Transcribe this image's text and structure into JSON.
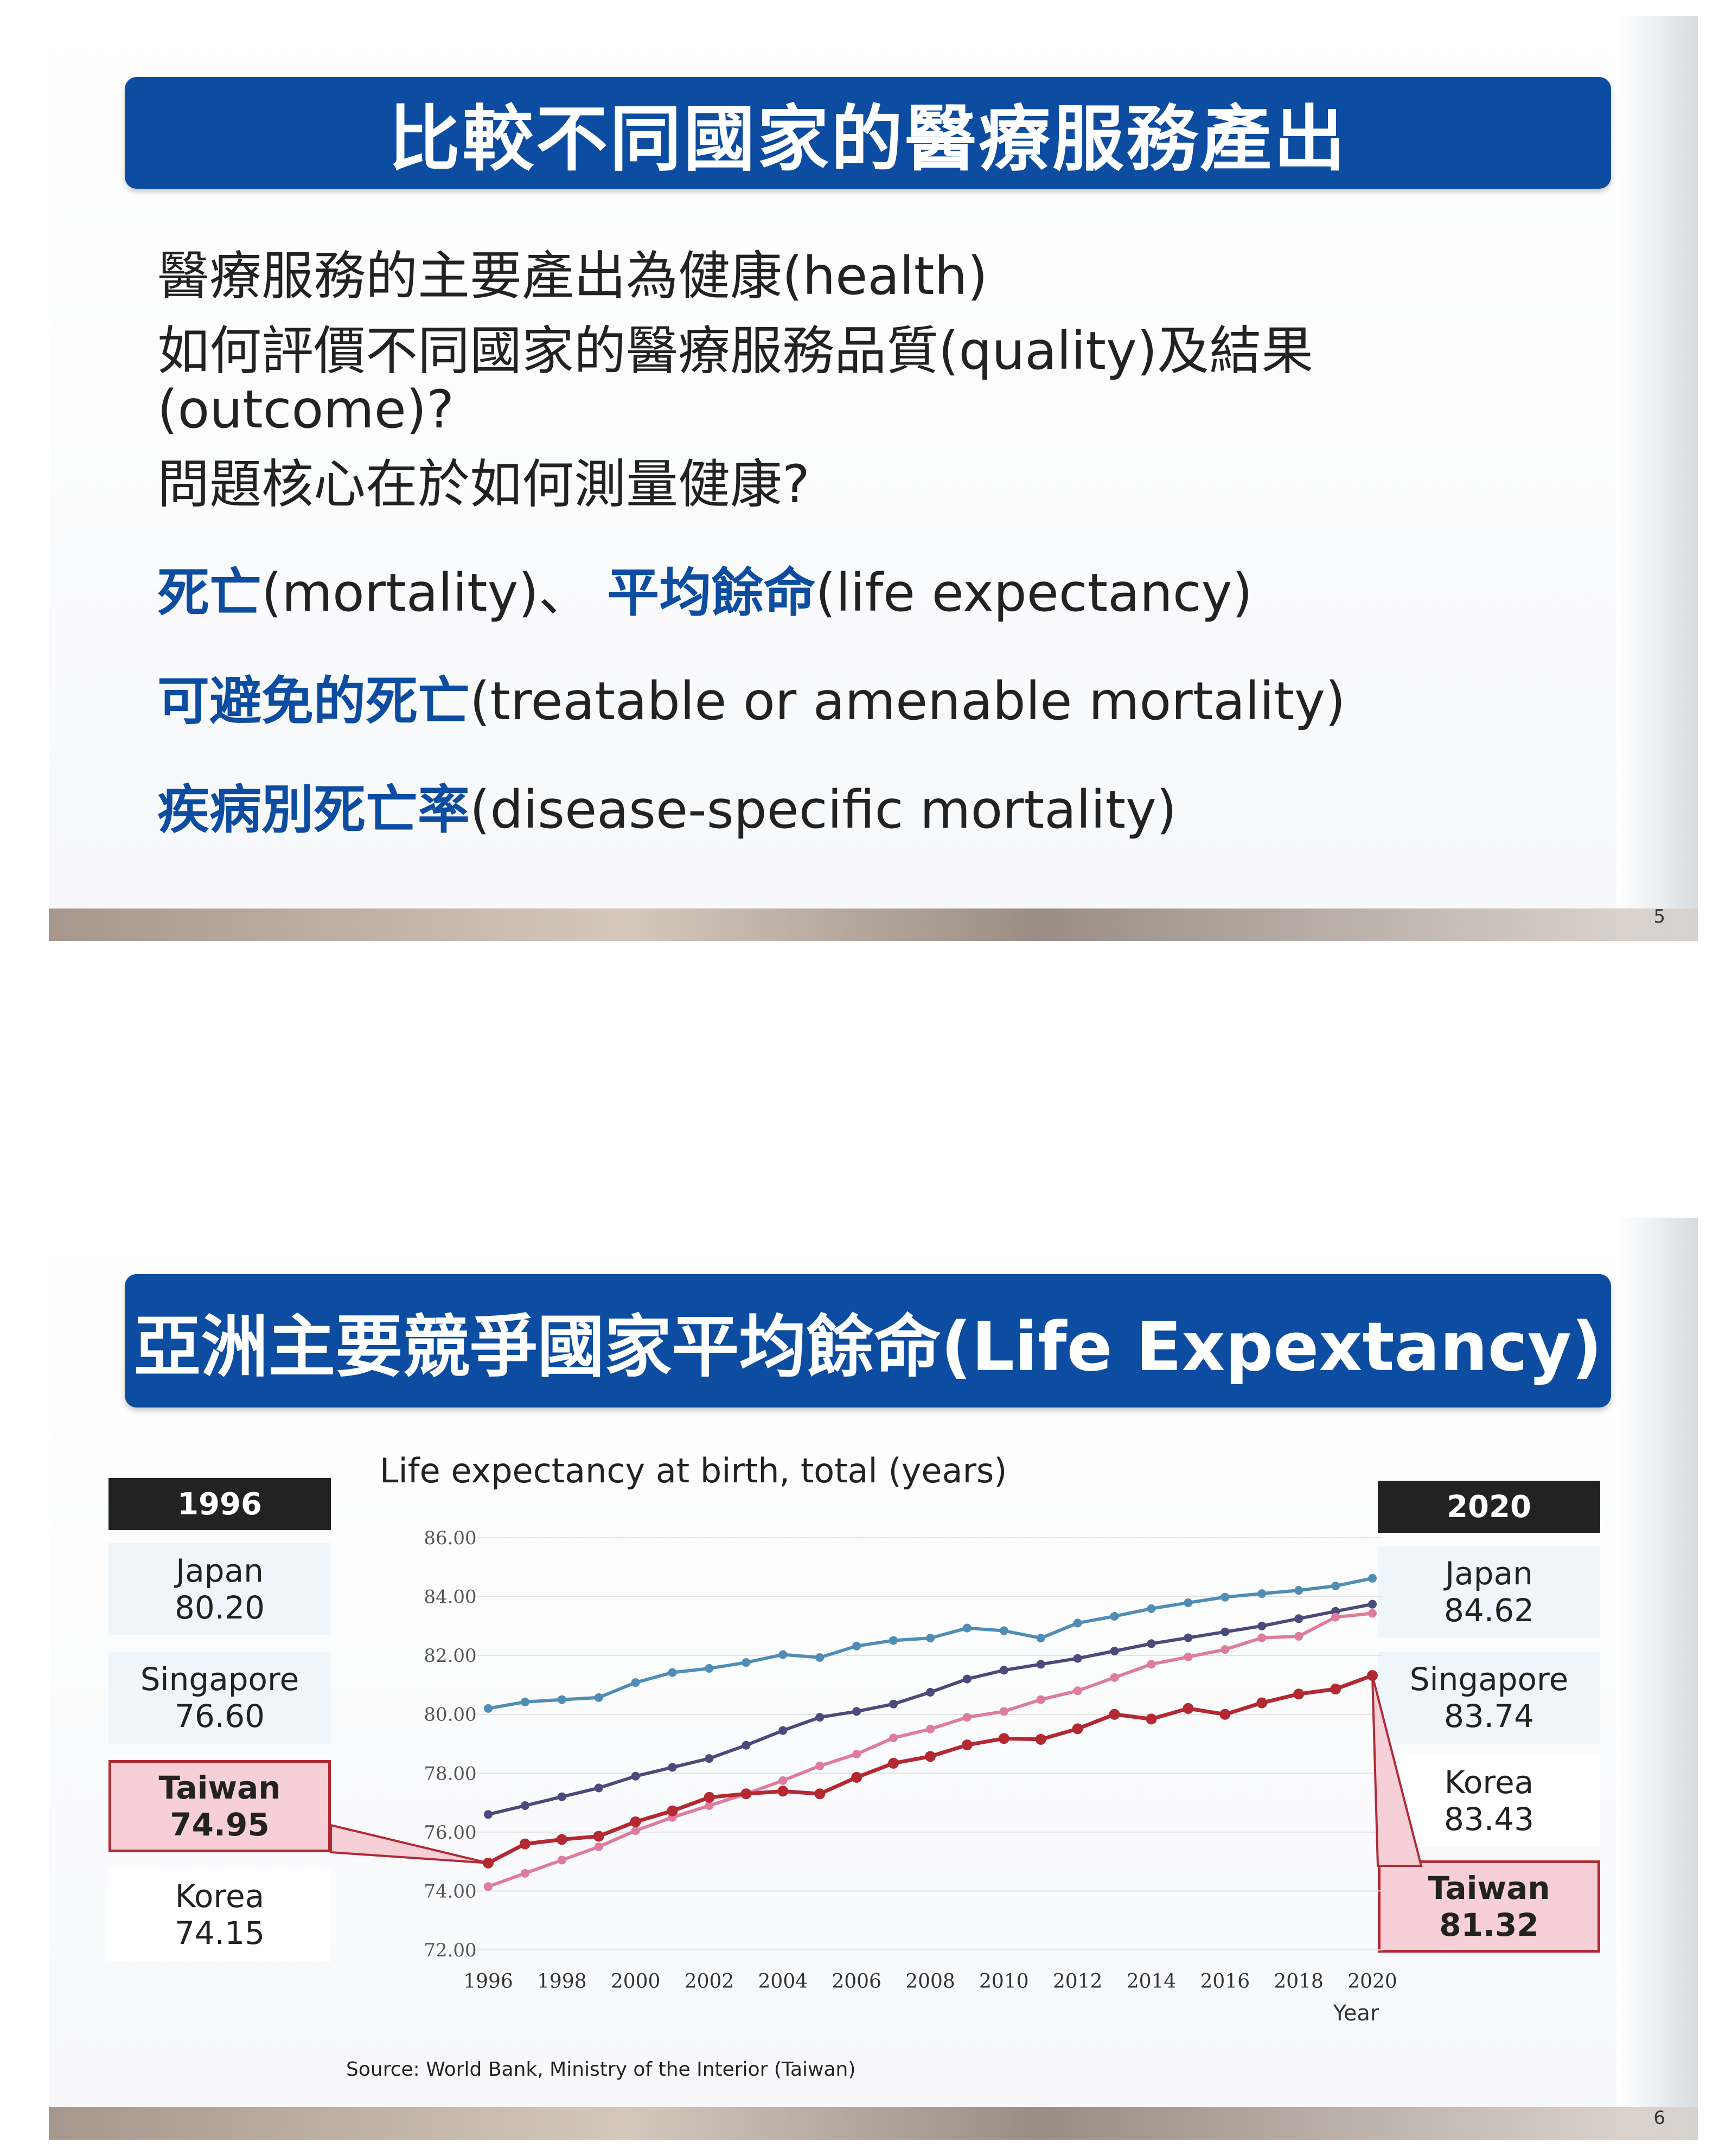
{
  "slide5": {
    "title": "比較不同國家的醫療服務產出",
    "lines": [
      "醫療服務的主要產出為健康(health)",
      "如何評價不同國家的醫療服務品質(quality)及結果",
      "(outcome)?",
      "問題核心在於如何測量健康?"
    ],
    "terms": [
      {
        "t1": "死亡",
        "r1": "(mortality)、 ",
        "t2": "平均餘命",
        "r2": "(life expectancy)"
      },
      {
        "t1": "可避免的死亡",
        "r1": "(treatable or amenable mortality)"
      },
      {
        "t1": "疾病別死亡率",
        "r1": "(disease-specific mortality)"
      }
    ],
    "page": "5"
  },
  "slide6": {
    "title": "亞洲主要競爭國家平均餘命(Life Expextancy)",
    "left_year": "1996",
    "right_year": "2020",
    "left": [
      {
        "name": "Japan",
        "value": "80.20"
      },
      {
        "name": "Singapore",
        "value": "76.60"
      },
      {
        "name": "Taiwan",
        "value": "74.95"
      },
      {
        "name": "Korea",
        "value": "74.15"
      }
    ],
    "right": [
      {
        "name": "Japan",
        "value": "84.62"
      },
      {
        "name": "Singapore",
        "value": "83.74"
      },
      {
        "name": "Korea",
        "value": "83.43"
      },
      {
        "name": "Taiwan",
        "value": "81.32"
      }
    ],
    "source": "Source: World Bank, Ministry of the Interior (Taiwan)",
    "page": "6"
  },
  "chart_data": {
    "type": "line",
    "title": "Life expectancy at birth, total (years)",
    "xlabel": "Year",
    "ylabel": "",
    "ylim": [
      72,
      86
    ],
    "yticks": [
      "72.00",
      "74.00",
      "76.00",
      "78.00",
      "80.00",
      "82.00",
      "84.00",
      "86.00"
    ],
    "xticks": [
      "1996",
      "1998",
      "2000",
      "2002",
      "2004",
      "2006",
      "2008",
      "2010",
      "2012",
      "2014",
      "2016",
      "2018",
      "2020"
    ],
    "x": [
      1996,
      1997,
      1998,
      1999,
      2000,
      2001,
      2002,
      2003,
      2004,
      2005,
      2006,
      2007,
      2008,
      2009,
      2010,
      2011,
      2012,
      2013,
      2014,
      2015,
      2016,
      2017,
      2018,
      2019,
      2020
    ],
    "grid": "horizontal",
    "series": [
      {
        "name": "Japan",
        "color": "#4f8db5",
        "values": [
          80.2,
          80.42,
          80.5,
          80.57,
          81.08,
          81.42,
          81.56,
          81.76,
          82.03,
          81.93,
          82.32,
          82.51,
          82.59,
          82.93,
          82.84,
          82.59,
          83.1,
          83.33,
          83.59,
          83.79,
          83.98,
          84.1,
          84.21,
          84.36,
          84.62
        ]
      },
      {
        "name": "Singapore",
        "color": "#4a4a7c",
        "values": [
          76.6,
          76.9,
          77.2,
          77.5,
          77.9,
          78.2,
          78.5,
          78.95,
          79.45,
          79.9,
          80.1,
          80.35,
          80.75,
          81.2,
          81.5,
          81.7,
          81.9,
          82.15,
          82.4,
          82.6,
          82.8,
          83.0,
          83.25,
          83.5,
          83.74
        ]
      },
      {
        "name": "Korea",
        "color": "#de7b9e",
        "values": [
          74.15,
          74.6,
          75.05,
          75.5,
          76.05,
          76.5,
          76.9,
          77.3,
          77.75,
          78.25,
          78.65,
          79.2,
          79.5,
          79.9,
          80.1,
          80.5,
          80.8,
          81.25,
          81.7,
          81.95,
          82.2,
          82.6,
          82.65,
          83.3,
          83.43
        ]
      },
      {
        "name": "Taiwan",
        "color": "#b42831",
        "values": [
          74.95,
          75.6,
          75.75,
          75.86,
          76.35,
          76.72,
          77.18,
          77.3,
          77.39,
          77.3,
          77.86,
          78.34,
          78.57,
          78.96,
          79.18,
          79.15,
          79.51,
          80.0,
          79.84,
          80.2,
          80.0,
          80.39,
          80.69,
          80.86,
          81.32
        ]
      }
    ]
  }
}
